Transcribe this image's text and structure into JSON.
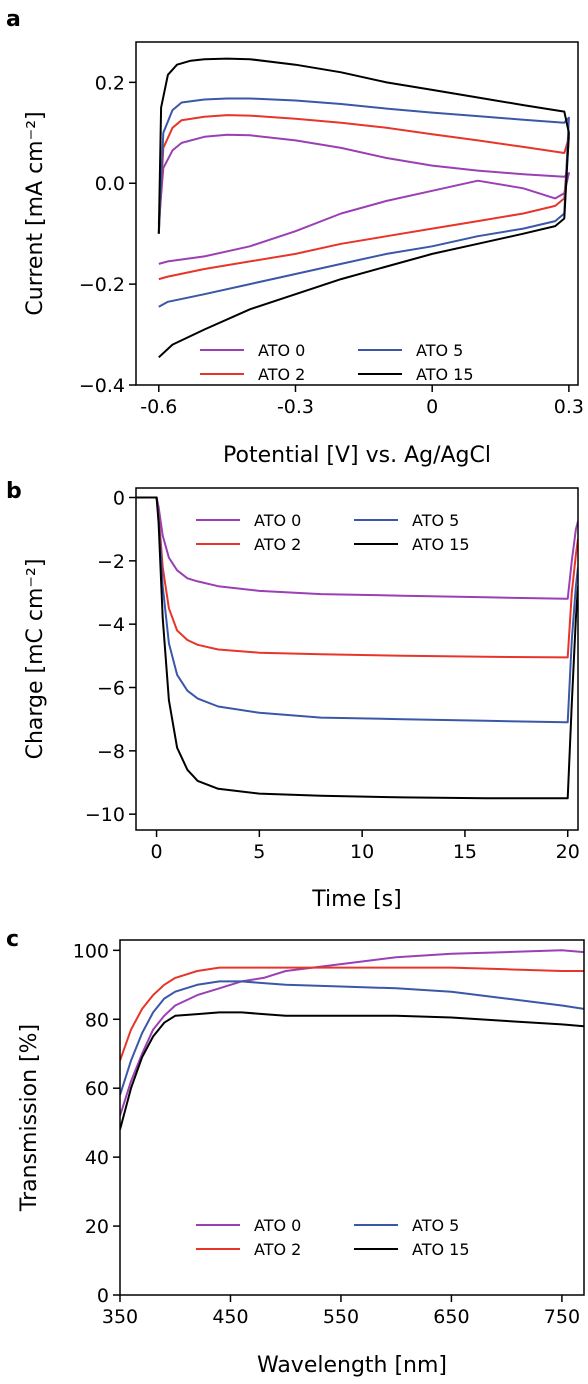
{
  "series_colors": {
    "ATO 0": "#9b3fb4",
    "ATO 2": "#e8352a",
    "ATO 5": "#3a57a8",
    "ATO 15": "#000000"
  },
  "chart_data": [
    {
      "panel": "a",
      "type": "line",
      "xlabel": "Potential [V] vs. Ag/AgCl",
      "ylabel": "Current [mA cm⁻²]",
      "xlim": [
        -0.65,
        0.32
      ],
      "ylim": [
        -0.4,
        0.28
      ],
      "xticks": [
        -0.6,
        -0.3,
        0,
        0.3
      ],
      "xtick_labels": [
        "-0.6",
        "-0.3",
        "0",
        "0.3"
      ],
      "yticks": [
        -0.4,
        -0.2,
        0.0,
        0.2
      ],
      "ytick_labels": [
        "−0.4",
        "−0.2",
        "0.0",
        "0.2"
      ],
      "legend_position": "lower-center",
      "grid": false,
      "series": [
        {
          "name": "ATO 0",
          "x": [
            -0.6,
            -0.59,
            -0.57,
            -0.55,
            -0.5,
            -0.45,
            -0.4,
            -0.3,
            -0.2,
            -0.1,
            0.0,
            0.1,
            0.2,
            0.29,
            0.3,
            0.29,
            0.27,
            0.2,
            0.1,
            0.0,
            -0.1,
            -0.2,
            -0.3,
            -0.4,
            -0.5,
            -0.58,
            -0.6
          ],
          "y": [
            -0.08,
            0.03,
            0.065,
            0.08,
            0.092,
            0.096,
            0.095,
            0.085,
            0.07,
            0.05,
            0.035,
            0.025,
            0.018,
            0.013,
            0.02,
            -0.02,
            -0.03,
            -0.01,
            0.005,
            -0.015,
            -0.035,
            -0.06,
            -0.095,
            -0.125,
            -0.145,
            -0.155,
            -0.16
          ]
        },
        {
          "name": "ATO 2",
          "x": [
            -0.6,
            -0.59,
            -0.57,
            -0.55,
            -0.5,
            -0.45,
            -0.4,
            -0.3,
            -0.2,
            -0.1,
            0.0,
            0.1,
            0.2,
            0.29,
            0.3,
            0.29,
            0.27,
            0.2,
            0.1,
            0.0,
            -0.1,
            -0.2,
            -0.3,
            -0.4,
            -0.5,
            -0.58,
            -0.6
          ],
          "y": [
            -0.1,
            0.07,
            0.11,
            0.125,
            0.132,
            0.135,
            0.134,
            0.128,
            0.12,
            0.11,
            0.097,
            0.085,
            0.072,
            0.06,
            0.09,
            -0.03,
            -0.045,
            -0.06,
            -0.075,
            -0.09,
            -0.105,
            -0.12,
            -0.14,
            -0.155,
            -0.17,
            -0.185,
            -0.19
          ]
        },
        {
          "name": "ATO 5",
          "x": [
            -0.6,
            -0.59,
            -0.57,
            -0.55,
            -0.5,
            -0.45,
            -0.4,
            -0.3,
            -0.2,
            -0.1,
            0.0,
            0.1,
            0.2,
            0.29,
            0.3,
            0.29,
            0.27,
            0.2,
            0.1,
            0.0,
            -0.1,
            -0.2,
            -0.3,
            -0.4,
            -0.5,
            -0.58,
            -0.6
          ],
          "y": [
            -0.1,
            0.1,
            0.145,
            0.16,
            0.166,
            0.168,
            0.168,
            0.164,
            0.157,
            0.148,
            0.14,
            0.133,
            0.126,
            0.12,
            0.13,
            -0.06,
            -0.075,
            -0.09,
            -0.105,
            -0.125,
            -0.14,
            -0.16,
            -0.18,
            -0.2,
            -0.22,
            -0.235,
            -0.245
          ]
        },
        {
          "name": "ATO 15",
          "x": [
            -0.6,
            -0.595,
            -0.58,
            -0.56,
            -0.53,
            -0.5,
            -0.45,
            -0.4,
            -0.3,
            -0.2,
            -0.1,
            0.0,
            0.1,
            0.2,
            0.29,
            0.3,
            0.29,
            0.27,
            0.2,
            0.1,
            0.0,
            -0.1,
            -0.2,
            -0.3,
            -0.4,
            -0.5,
            -0.57,
            -0.6
          ],
          "y": [
            -0.1,
            0.15,
            0.215,
            0.235,
            0.243,
            0.246,
            0.247,
            0.246,
            0.235,
            0.22,
            0.2,
            0.185,
            0.17,
            0.155,
            0.142,
            0.1,
            -0.07,
            -0.085,
            -0.1,
            -0.12,
            -0.14,
            -0.165,
            -0.19,
            -0.22,
            -0.25,
            -0.29,
            -0.32,
            -0.345
          ]
        }
      ]
    },
    {
      "panel": "b",
      "type": "line",
      "xlabel": "Time [s]",
      "ylabel": "Charge [mC cm⁻²]",
      "xlim": [
        -1,
        20.5
      ],
      "ylim": [
        -10.5,
        0.3
      ],
      "xticks": [
        0,
        5,
        10,
        15,
        20
      ],
      "xtick_labels": [
        "0",
        "5",
        "10",
        "15",
        "20"
      ],
      "yticks": [
        -10,
        -8,
        -6,
        -4,
        -2,
        0
      ],
      "ytick_labels": [
        "−10",
        "−8",
        "−6",
        "−4",
        "−2",
        "0"
      ],
      "legend_position": "upper-center",
      "grid": false,
      "series": [
        {
          "name": "ATO 0",
          "x": [
            -1,
            0,
            0.1,
            0.3,
            0.6,
            1,
            1.5,
            2,
            3,
            5,
            8,
            12,
            16,
            19.9,
            20,
            20.2,
            20.4,
            20.5
          ],
          "y": [
            0,
            0,
            -0.3,
            -1.2,
            -1.9,
            -2.3,
            -2.55,
            -2.65,
            -2.8,
            -2.95,
            -3.05,
            -3.1,
            -3.15,
            -3.2,
            -3.2,
            -2.0,
            -1.0,
            -0.75
          ]
        },
        {
          "name": "ATO 2",
          "x": [
            -1,
            0,
            0.1,
            0.3,
            0.6,
            1,
            1.5,
            2,
            3,
            5,
            8,
            12,
            16,
            19.9,
            20,
            20.2,
            20.4,
            20.5
          ],
          "y": [
            0,
            0,
            -0.5,
            -2.2,
            -3.5,
            -4.2,
            -4.5,
            -4.65,
            -4.8,
            -4.9,
            -4.95,
            -5.0,
            -5.03,
            -5.05,
            -5.05,
            -3.0,
            -1.8,
            -1.3
          ]
        },
        {
          "name": "ATO 5",
          "x": [
            -1,
            0,
            0.1,
            0.3,
            0.6,
            1,
            1.5,
            2,
            3,
            5,
            8,
            12,
            16,
            19.9,
            20,
            20.2,
            20.4,
            20.5
          ],
          "y": [
            0,
            0,
            -0.6,
            -2.8,
            -4.6,
            -5.6,
            -6.1,
            -6.35,
            -6.6,
            -6.8,
            -6.95,
            -7.0,
            -7.05,
            -7.1,
            -7.1,
            -4.5,
            -2.8,
            -2.2
          ]
        },
        {
          "name": "ATO 15",
          "x": [
            -1,
            0,
            0.1,
            0.3,
            0.6,
            1,
            1.5,
            2,
            3,
            5,
            8,
            12,
            16,
            19.9,
            20,
            20.2,
            20.4,
            20.5
          ],
          "y": [
            0,
            0,
            -0.8,
            -3.8,
            -6.4,
            -7.9,
            -8.6,
            -8.95,
            -9.2,
            -9.35,
            -9.42,
            -9.47,
            -9.5,
            -9.5,
            -9.5,
            -6.5,
            -3.8,
            -2.8
          ]
        }
      ]
    },
    {
      "panel": "c",
      "type": "line",
      "xlabel": "Wavelength [nm]",
      "ylabel": "Transmission [%]",
      "xlim": [
        350,
        770
      ],
      "ylim": [
        0,
        103
      ],
      "xticks": [
        350,
        450,
        550,
        650,
        750
      ],
      "xtick_labels": [
        "350",
        "450",
        "550",
        "650",
        "750"
      ],
      "yticks": [
        0,
        20,
        40,
        60,
        80,
        100
      ],
      "ytick_labels": [
        "0",
        "20",
        "40",
        "60",
        "80",
        "100"
      ],
      "legend_position": "lower-center",
      "grid": false,
      "series": [
        {
          "name": "ATO 0",
          "x": [
            350,
            360,
            370,
            380,
            390,
            400,
            420,
            440,
            460,
            480,
            500,
            550,
            600,
            650,
            700,
            750,
            770
          ],
          "y": [
            52,
            62,
            70,
            77,
            81,
            84,
            87,
            89,
            91,
            92,
            94,
            96,
            98,
            99,
            99.5,
            100,
            99.5
          ]
        },
        {
          "name": "ATO 2",
          "x": [
            350,
            360,
            370,
            380,
            390,
            400,
            420,
            440,
            460,
            480,
            500,
            550,
            600,
            650,
            700,
            750,
            770
          ],
          "y": [
            68,
            77,
            83,
            87,
            90,
            92,
            94,
            95,
            95,
            95,
            95,
            95,
            95,
            95,
            94.5,
            94,
            94
          ]
        },
        {
          "name": "ATO 5",
          "x": [
            350,
            360,
            370,
            380,
            390,
            400,
            420,
            440,
            460,
            480,
            500,
            550,
            600,
            650,
            700,
            750,
            770
          ],
          "y": [
            58,
            68,
            76,
            82,
            86,
            88,
            90,
            91,
            91,
            90.5,
            90,
            89.5,
            89,
            88,
            86,
            84,
            83
          ]
        },
        {
          "name": "ATO 15",
          "x": [
            350,
            360,
            370,
            380,
            390,
            400,
            420,
            440,
            460,
            480,
            500,
            550,
            600,
            650,
            700,
            750,
            770
          ],
          "y": [
            48,
            60,
            69,
            75,
            79,
            81,
            81.5,
            82,
            82,
            81.5,
            81,
            81,
            81,
            80.5,
            79.5,
            78.5,
            78
          ]
        }
      ]
    }
  ]
}
